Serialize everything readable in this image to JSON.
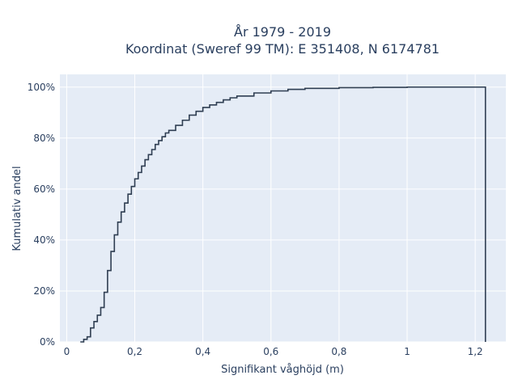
{
  "chart_data": {
    "type": "line",
    "title_line1": "År 1979 - 2019",
    "title_line2": "Koordinat (Sweref 99 TM): E 351408, N 6174781",
    "xlabel": "Signifikant våghöjd (m)",
    "ylabel": "Kumulativ andel",
    "xlim": [
      -0.02,
      1.29
    ],
    "ylim": [
      0,
      1.05
    ],
    "x_ticks": [
      0,
      0.2,
      0.4,
      0.6,
      0.8,
      1.0,
      1.2
    ],
    "x_tick_labels": [
      "0",
      "0,2",
      "0,4",
      "0,6",
      "0,8",
      "1",
      "1,2"
    ],
    "y_ticks": [
      0,
      0.2,
      0.4,
      0.6,
      0.8,
      1.0
    ],
    "y_tick_labels": [
      "0%",
      "20%",
      "40%",
      "60%",
      "80%",
      "100%"
    ],
    "grid": true,
    "step": true,
    "series": [
      {
        "x": [
          0.04,
          0.05,
          0.06,
          0.07,
          0.08,
          0.09,
          0.1,
          0.11,
          0.12,
          0.13,
          0.14,
          0.15,
          0.16,
          0.17,
          0.18,
          0.19,
          0.2,
          0.21,
          0.22,
          0.23,
          0.24,
          0.25,
          0.26,
          0.27,
          0.28,
          0.29,
          0.3,
          0.32,
          0.34,
          0.36,
          0.38,
          0.4,
          0.42,
          0.44,
          0.46,
          0.48,
          0.5,
          0.55,
          0.6,
          0.65,
          0.7,
          0.8,
          0.9,
          1.0,
          1.1,
          1.23
        ],
        "y": [
          0.0,
          0.01,
          0.02,
          0.055,
          0.08,
          0.105,
          0.135,
          0.195,
          0.28,
          0.355,
          0.42,
          0.47,
          0.51,
          0.545,
          0.58,
          0.61,
          0.64,
          0.665,
          0.69,
          0.715,
          0.735,
          0.755,
          0.775,
          0.79,
          0.805,
          0.82,
          0.83,
          0.85,
          0.87,
          0.89,
          0.905,
          0.92,
          0.93,
          0.94,
          0.95,
          0.958,
          0.965,
          0.977,
          0.985,
          0.991,
          0.995,
          0.998,
          0.999,
          1.0,
          1.0,
          1.0
        ]
      }
    ]
  }
}
